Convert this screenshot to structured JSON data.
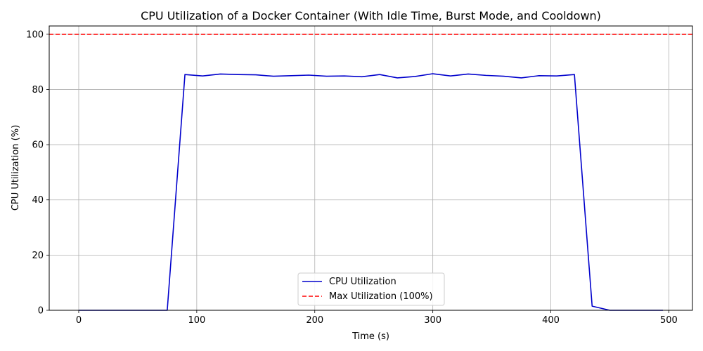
{
  "chart_data": {
    "type": "line",
    "title": "CPU Utilization of a Docker Container (With Idle Time, Burst Mode, and Cooldown)",
    "xlabel": "Time (s)",
    "ylabel": "CPU Utilization (%)",
    "xlim": [
      -25,
      520
    ],
    "ylim": [
      0,
      103
    ],
    "xticks": [
      0,
      100,
      200,
      300,
      400,
      500
    ],
    "yticks": [
      0,
      20,
      40,
      60,
      80,
      100
    ],
    "grid": true,
    "legend_position": "bottom-center",
    "series": [
      {
        "name": "CPU Utilization",
        "color": "#0000cc",
        "style": "solid",
        "x": [
          0,
          15,
          30,
          45,
          60,
          75,
          90,
          105,
          120,
          135,
          150,
          165,
          180,
          195,
          210,
          225,
          240,
          255,
          270,
          285,
          300,
          315,
          330,
          345,
          360,
          375,
          390,
          405,
          420,
          435,
          450,
          465,
          480,
          495
        ],
        "y": [
          0,
          0,
          0,
          0,
          0,
          0,
          85.4,
          84.9,
          85.6,
          85.4,
          85.3,
          84.8,
          85.0,
          85.2,
          84.8,
          84.9,
          84.6,
          85.4,
          84.2,
          84.7,
          85.7,
          84.9,
          85.6,
          85.1,
          84.8,
          84.2,
          85.0,
          84.9,
          85.4,
          1.5,
          0,
          0,
          0,
          0
        ]
      },
      {
        "name": "Max Utilization (100%)",
        "color": "#ff0000",
        "style": "dashed",
        "y_constant": 100
      }
    ]
  }
}
